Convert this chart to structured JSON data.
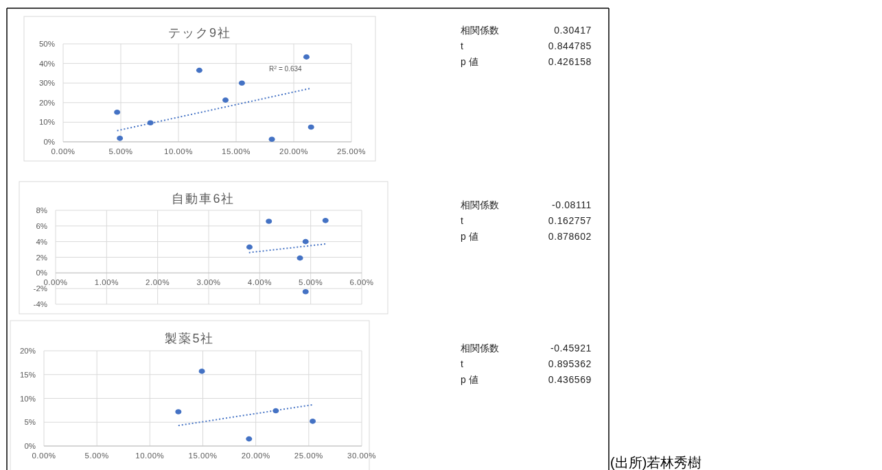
{
  "chart_data": [
    {
      "type": "scatter",
      "title": "テック9社",
      "grid": true,
      "xlim": [
        0,
        25
      ],
      "ylim": [
        0,
        50
      ],
      "xticks": [
        {
          "value": 0,
          "label": "0.00%"
        },
        {
          "value": 5,
          "label": "5.00%"
        },
        {
          "value": 10,
          "label": "10.00%"
        },
        {
          "value": 15,
          "label": "15.00%"
        },
        {
          "value": 20,
          "label": "20.00%"
        },
        {
          "value": 25,
          "label": "25.00%"
        }
      ],
      "yticks": [
        {
          "value": 0,
          "label": "0%"
        },
        {
          "value": 10,
          "label": "10%"
        },
        {
          "value": 20,
          "label": "20%"
        },
        {
          "value": 30,
          "label": "30%"
        },
        {
          "value": 40,
          "label": "40%"
        },
        {
          "value": 50,
          "label": "50%"
        }
      ],
      "series": [
        {
          "type": "scatter",
          "marker": "circle",
          "color": "#4472c4",
          "x": [
            4.68,
            4.92,
            7.57,
            11.81,
            14.08,
            15.5,
            18.1,
            21.1,
            21.5
          ],
          "values": [
            15.1,
            1.8,
            9.7,
            36.5,
            21.3,
            30.0,
            1.3,
            43.3,
            7.5
          ]
        },
        {
          "type": "line",
          "marker": "none",
          "color": "#4472c4",
          "line_style": "dotted",
          "x": [
            4.68,
            21.45
          ],
          "values": [
            5.7,
            27.3
          ]
        }
      ],
      "annotations": [
        "R$^{2}$ = 0.634",
        "相関係数",
        "0.30417",
        "t",
        "0.844785",
        "p 値",
        "0.426158"
      ]
    },
    {
      "type": "scatter",
      "title": "自動車6社",
      "grid": true,
      "xlim": [
        0,
        6
      ],
      "ylim": [
        -4,
        8
      ],
      "xticks": [
        {
          "value": 0,
          "label": "0.00%"
        },
        {
          "value": 1,
          "label": "1.00%"
        },
        {
          "value": 2,
          "label": "2.00%"
        },
        {
          "value": 3,
          "label": "3.00%"
        },
        {
          "value": 4,
          "label": "4.00%"
        },
        {
          "value": 5,
          "label": "5.00%"
        },
        {
          "value": 6,
          "label": "6.00%"
        }
      ],
      "yticks": [
        {
          "value": -4,
          "label": "-4%"
        },
        {
          "value": -2,
          "label": "-2%"
        },
        {
          "value": 0,
          "label": "0%"
        },
        {
          "value": 2,
          "label": "2%"
        },
        {
          "value": 4,
          "label": "4%"
        },
        {
          "value": 6,
          "label": "6%"
        },
        {
          "value": 8,
          "label": "8%"
        }
      ],
      "series": [
        {
          "type": "scatter",
          "marker": "circle",
          "color": "#4472c4",
          "x": [
            3.8,
            4.18,
            4.79,
            4.9,
            4.9,
            5.29
          ],
          "values": [
            3.3,
            6.6,
            1.9,
            4.0,
            -2.4,
            6.7
          ]
        },
        {
          "type": "line",
          "marker": "none",
          "color": "#4472c4",
          "line_style": "dotted",
          "x": [
            3.79,
            5.29
          ],
          "values": [
            2.6,
            3.7
          ]
        }
      ],
      "annotations": [
        "相関係数",
        "-0.08111",
        "t",
        "0.162757",
        "p 値",
        "0.878602"
      ]
    },
    {
      "type": "scatter",
      "title": "製薬5社",
      "grid": true,
      "xlim": [
        0,
        30
      ],
      "ylim": [
        0,
        20
      ],
      "xticks": [
        {
          "value": 0,
          "label": "0.00%"
        },
        {
          "value": 5,
          "label": "5.00%"
        },
        {
          "value": 10,
          "label": "10.00%"
        },
        {
          "value": 15,
          "label": "15.00%"
        },
        {
          "value": 20,
          "label": "20.00%"
        },
        {
          "value": 25,
          "label": "25.00%"
        },
        {
          "value": 30,
          "label": "30.00%"
        }
      ],
      "yticks": [
        {
          "value": 0,
          "label": "0%"
        },
        {
          "value": 5,
          "label": "5%"
        },
        {
          "value": 10,
          "label": "10%"
        },
        {
          "value": 15,
          "label": "15%"
        },
        {
          "value": 20,
          "label": "20%"
        }
      ],
      "series": [
        {
          "type": "scatter",
          "marker": "circle",
          "color": "#4472c4",
          "x": [
            12.69,
            14.91,
            19.36,
            21.89,
            25.37
          ],
          "values": [
            7.2,
            15.7,
            1.5,
            7.4,
            5.2
          ]
        },
        {
          "type": "line",
          "marker": "none",
          "color": "#4472c4",
          "line_style": "dotted",
          "x": [
            12.69,
            25.46
          ],
          "values": [
            4.3,
            8.7
          ]
        }
      ],
      "annotations": [
        "(出所)若林秀樹",
        "相関係数",
        "-0.45921",
        "t",
        "0.895362",
        "p 値",
        "0.436569"
      ]
    }
  ]
}
